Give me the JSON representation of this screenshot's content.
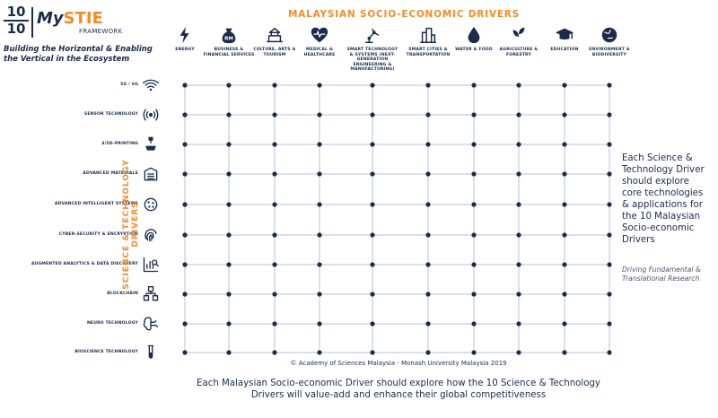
{
  "logo": {
    "numerator": "10",
    "denominator": "10",
    "name_prefix": "My",
    "name_highlight": "STIE",
    "subtitle": "FRAMEWORK"
  },
  "tagline": "Building the Horizontal & Enabling the Vertical in the Ecosystem",
  "top_title": "MALAYSIAN SOCIO-ECONOMIC DRIVERS",
  "side_title": "SCIENCE & TECHNOLOGY DRIVERS",
  "columns": [
    {
      "label": "ENERGY",
      "icon": "lightning-icon"
    },
    {
      "label": "BUSINESS & FINANCIAL SERVICES",
      "icon": "money-bag-icon"
    },
    {
      "label": "CULTURE, ARTS & TOURISM",
      "icon": "tourism-icon"
    },
    {
      "label": "MEDICAL & HEALTHCARE",
      "icon": "heart-icon"
    },
    {
      "label": "SMART TECHNOLOGY & SYSTEMS (NEXT-GENERATION ENGINEERING & MANUFACTURING)",
      "icon": "robot-arm-icon"
    },
    {
      "label": "SMART CITIES & TRANSPORTATION",
      "icon": "city-icon"
    },
    {
      "label": "WATER & FOOD",
      "icon": "water-drop-icon"
    },
    {
      "label": "AGRICULTURE & FORESTRY",
      "icon": "plant-icon"
    },
    {
      "label": "EDUCATION",
      "icon": "graduation-cap-icon"
    },
    {
      "label": "ENVIRONMENT & BIODIVERSITY",
      "icon": "globe-icon"
    }
  ],
  "rows": [
    {
      "label": "5G / 6G",
      "icon": "wifi-icon"
    },
    {
      "label": "SENSOR TECHNOLOGY",
      "icon": "sensor-icon"
    },
    {
      "label": "4/5D-PRINTING",
      "icon": "printer-icon"
    },
    {
      "label": "ADVANCED MATERIALS",
      "icon": "materials-icon"
    },
    {
      "label": "ADVANCED INTELLIGENT SYSTEMS",
      "icon": "ai-icon"
    },
    {
      "label": "CYBER-SECURITY & ENCRYPTION",
      "icon": "fingerprint-icon"
    },
    {
      "label": "AUGMENTED ANALYTICS & DATA DISCOVERY",
      "icon": "analytics-icon"
    },
    {
      "label": "BLOCKCHAIN",
      "icon": "blockchain-icon"
    },
    {
      "label": "NEURO TECHNOLOGY",
      "icon": "brain-icon"
    },
    {
      "label": "BIOSCIENCE TECHNOLOGY",
      "icon": "test-tube-icon"
    }
  ],
  "right_text": "Each Science & Technology Driver should explore core technologies & applications for the 10 Malaysian Socio-economic Drivers",
  "right_note": "Driving Fundamental & Translational Research",
  "copyright": "© Academy of Sciences Malaysia - Monash University Malaysia 2019",
  "bottom_text": "Each Malaysian Socio-economic Driver should explore how the 10 Science & Technology Drivers will value-add and enhance their global competitiveness",
  "colors": {
    "navy": "#1c2b4a",
    "orange": "#f28c28",
    "grid": "#b8c2cf"
  }
}
